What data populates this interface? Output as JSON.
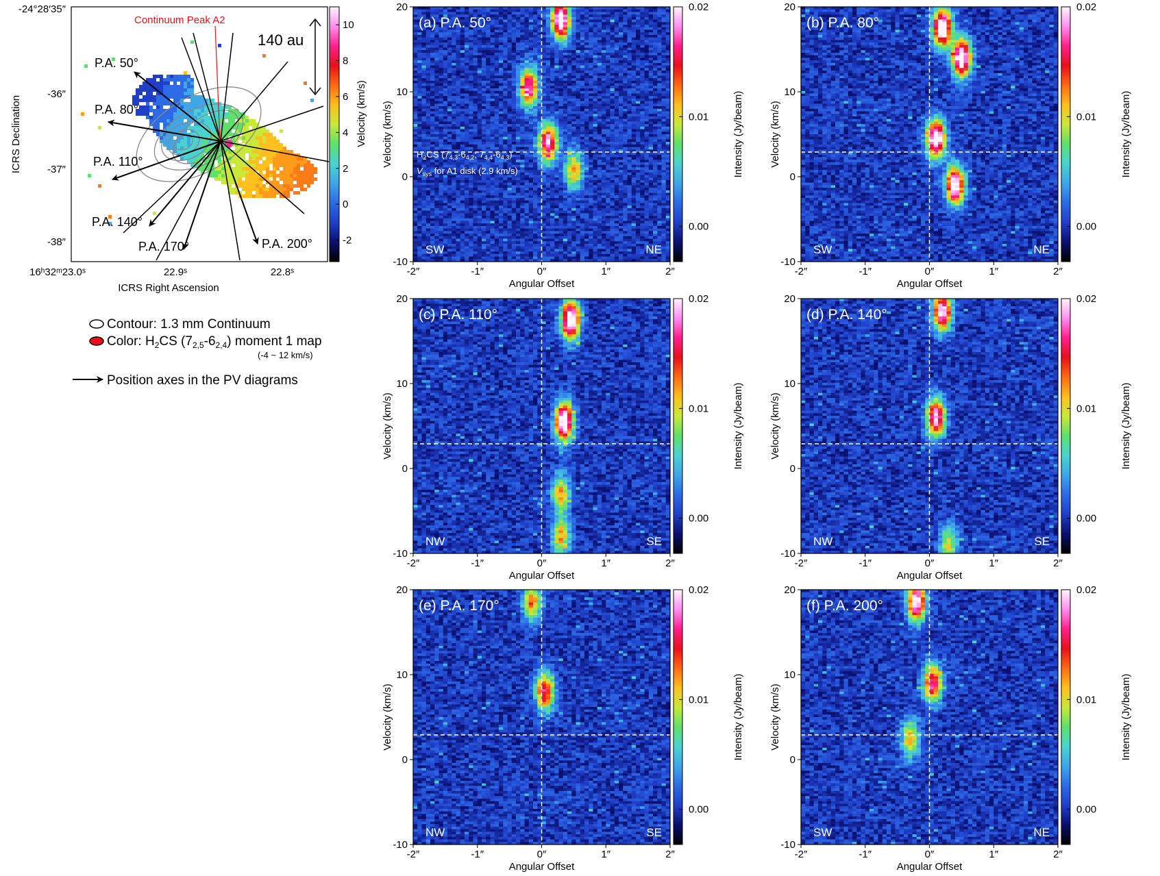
{
  "colorscale": {
    "stops": [
      "#000000",
      "#0a0f6e",
      "#1f3fc8",
      "#2c6ae6",
      "#3fa6e8",
      "#49d3d0",
      "#5fe06a",
      "#c8e83a",
      "#ffbf1f",
      "#ff6a14",
      "#e8101a",
      "#ff1e8c",
      "#ff8ef0",
      "#fff4fb"
    ]
  },
  "moment_map": {
    "dec_ticks": [
      "-24°28′35″",
      "-36″",
      "-37″",
      "-38″"
    ],
    "ra_ticks": [
      "16ʰ32ᵐ23.0ˢ",
      "22.9ˢ",
      "22.8ˢ"
    ],
    "ylabel": "ICRS Declination",
    "xlabel": "ICRS Right Ascension",
    "continuum_label": "Continuum Peak A2",
    "scalebar_label": "140 au",
    "colorbar_ticks": [
      10,
      8,
      6,
      4,
      2,
      0,
      -2
    ],
    "colorbar_label": "Velocity (km/s)",
    "pa_labels": [
      "P.A. 50°",
      "P.A. 80°",
      "P.A. 110°",
      "P.A. 140°",
      "P.A. 170°",
      "P.A. 200°"
    ],
    "pa_angles": [
      50,
      80,
      110,
      140,
      170,
      200
    ]
  },
  "legend": {
    "contour": "Contour: 1.3 mm Continuum",
    "color_prefix": "Color: H",
    "color_sub1": "2",
    "color_mid": "CS (7",
    "color_sub2": "2,5",
    "color_dash": "-6",
    "color_sub3": "2,4",
    "color_suffix": ") moment 1 map",
    "range": "(-4 ~ 12 km/s)",
    "arrow": "Position axes in the PV diagrams"
  },
  "pv_common": {
    "xticks": [
      "-2″",
      "-1″",
      "0″",
      "1″",
      "2″"
    ],
    "yticks": [
      "20",
      "10",
      "0",
      "-10"
    ],
    "xlabel": "Angular Offset",
    "ylabel": "Velocity (km/s)",
    "cbar_ticks": [
      "0.02",
      "0.01",
      "0.00"
    ],
    "cbar_label": "Intensity (Jy/beam)",
    "vsys": 2.9
  },
  "annotation_a": {
    "line1_a": "H",
    "line1_s1": "2",
    "line1_b": "CS (7",
    "line1_s2": "4,3",
    "line1_c": "-6",
    "line1_s3": "4,2",
    "line1_d": "; 7",
    "line1_s4": "4,4",
    "line1_e": "-6",
    "line1_s5": "4,3",
    "line1_f": ")",
    "line2_a": "V",
    "line2_s": "sys",
    "line2_b": " for A1 disk (2.9 km/s)"
  },
  "chart_data": [
    {
      "type": "heatmap",
      "title": "(a) P.A. 50°",
      "left_label": "SW",
      "right_label": "NE",
      "xlim": [
        -2,
        2
      ],
      "ylim": [
        -10,
        20
      ],
      "emission": [
        {
          "x": 0.3,
          "v": 18.5,
          "peak": 0.02
        },
        {
          "x": -0.2,
          "v": 10.5,
          "peak": 0.016
        },
        {
          "x": 0.1,
          "v": 4.0,
          "peak": 0.016
        },
        {
          "x": 0.5,
          "v": 0.8,
          "peak": 0.01
        }
      ]
    },
    {
      "type": "heatmap",
      "title": "(b) P.A. 80°",
      "left_label": "SW",
      "right_label": "NE",
      "xlim": [
        -2,
        2
      ],
      "ylim": [
        -10,
        20
      ],
      "emission": [
        {
          "x": 0.2,
          "v": 17.5,
          "peak": 0.02
        },
        {
          "x": 0.5,
          "v": 14.0,
          "peak": 0.02
        },
        {
          "x": 0.1,
          "v": 4.5,
          "peak": 0.02
        },
        {
          "x": 0.4,
          "v": -1.0,
          "peak": 0.019
        }
      ]
    },
    {
      "type": "heatmap",
      "title": "(c) P.A. 110°",
      "left_label": "NW",
      "right_label": "SE",
      "xlim": [
        -2,
        2
      ],
      "ylim": [
        -10,
        20
      ],
      "emission": [
        {
          "x": 0.45,
          "v": 17.5,
          "peak": 0.02
        },
        {
          "x": 0.35,
          "v": 5.5,
          "peak": 0.02
        },
        {
          "x": 0.3,
          "v": -3.0,
          "peak": 0.01
        },
        {
          "x": 0.3,
          "v": -8.0,
          "peak": 0.01
        }
      ]
    },
    {
      "type": "heatmap",
      "title": "(d) P.A. 140°",
      "left_label": "NW",
      "right_label": "SE",
      "xlim": [
        -2,
        2
      ],
      "ylim": [
        -10,
        20
      ],
      "emission": [
        {
          "x": 0.2,
          "v": 18.5,
          "peak": 0.018
        },
        {
          "x": 0.1,
          "v": 6.0,
          "peak": 0.017
        },
        {
          "x": 0.3,
          "v": -9.0,
          "peak": 0.008
        }
      ]
    },
    {
      "type": "heatmap",
      "title": "(e) P.A. 170°",
      "left_label": "NW",
      "right_label": "SE",
      "xlim": [
        -2,
        2
      ],
      "ylim": [
        -10,
        20
      ],
      "emission": [
        {
          "x": -0.15,
          "v": 18.5,
          "peak": 0.011
        },
        {
          "x": 0.05,
          "v": 8.0,
          "peak": 0.014
        }
      ]
    },
    {
      "type": "heatmap",
      "title": "(f) P.A. 200°",
      "left_label": "SW",
      "right_label": "NE",
      "xlim": [
        -2,
        2
      ],
      "ylim": [
        -10,
        20
      ],
      "emission": [
        {
          "x": -0.2,
          "v": 18.5,
          "peak": 0.018
        },
        {
          "x": 0.05,
          "v": 9.0,
          "peak": 0.015
        },
        {
          "x": -0.3,
          "v": 2.5,
          "peak": 0.01
        }
      ]
    }
  ]
}
